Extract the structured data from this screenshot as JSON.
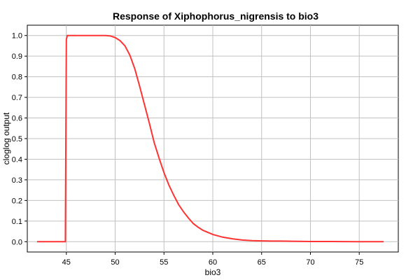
{
  "chart_data": {
    "type": "line",
    "title": "Response of Xiphophorus_nigrensis to bio3",
    "xlabel": "bio3",
    "ylabel": "cloglog output",
    "xlim": [
      41,
      79
    ],
    "ylim": [
      -0.05,
      1.05
    ],
    "xticks": [
      45,
      50,
      55,
      60,
      65,
      70,
      75
    ],
    "yticks": [
      0.0,
      0.1,
      0.2,
      0.3,
      0.4,
      0.5,
      0.6,
      0.7,
      0.8,
      0.9,
      1.0
    ],
    "grid": true,
    "line_color": "#ff3333",
    "series": [
      {
        "x": [
          42.0,
          44.9,
          45.0,
          45.1,
          47.0,
          49.0,
          49.5,
          50.0,
          50.5,
          51.0,
          51.5,
          52.0,
          52.5,
          53.0,
          53.5,
          54.0,
          54.5,
          55.0,
          55.5,
          56.0,
          56.5,
          57.0,
          57.5,
          58.0,
          58.5,
          59.0,
          60.0,
          61.0,
          62.0,
          63.0,
          64.0,
          65.0,
          66.0,
          67.0,
          68.0,
          70.0,
          72.0,
          75.0,
          77.5
        ],
        "y": [
          0.0,
          0.0,
          0.98,
          1.0,
          1.0,
          1.0,
          0.998,
          0.99,
          0.975,
          0.95,
          0.905,
          0.84,
          0.755,
          0.665,
          0.575,
          0.48,
          0.405,
          0.335,
          0.275,
          0.225,
          0.18,
          0.145,
          0.115,
          0.088,
          0.07,
          0.055,
          0.035,
          0.022,
          0.014,
          0.008,
          0.005,
          0.004,
          0.003,
          0.003,
          0.002,
          0.001,
          0.001,
          0.0,
          0.0
        ]
      }
    ]
  }
}
